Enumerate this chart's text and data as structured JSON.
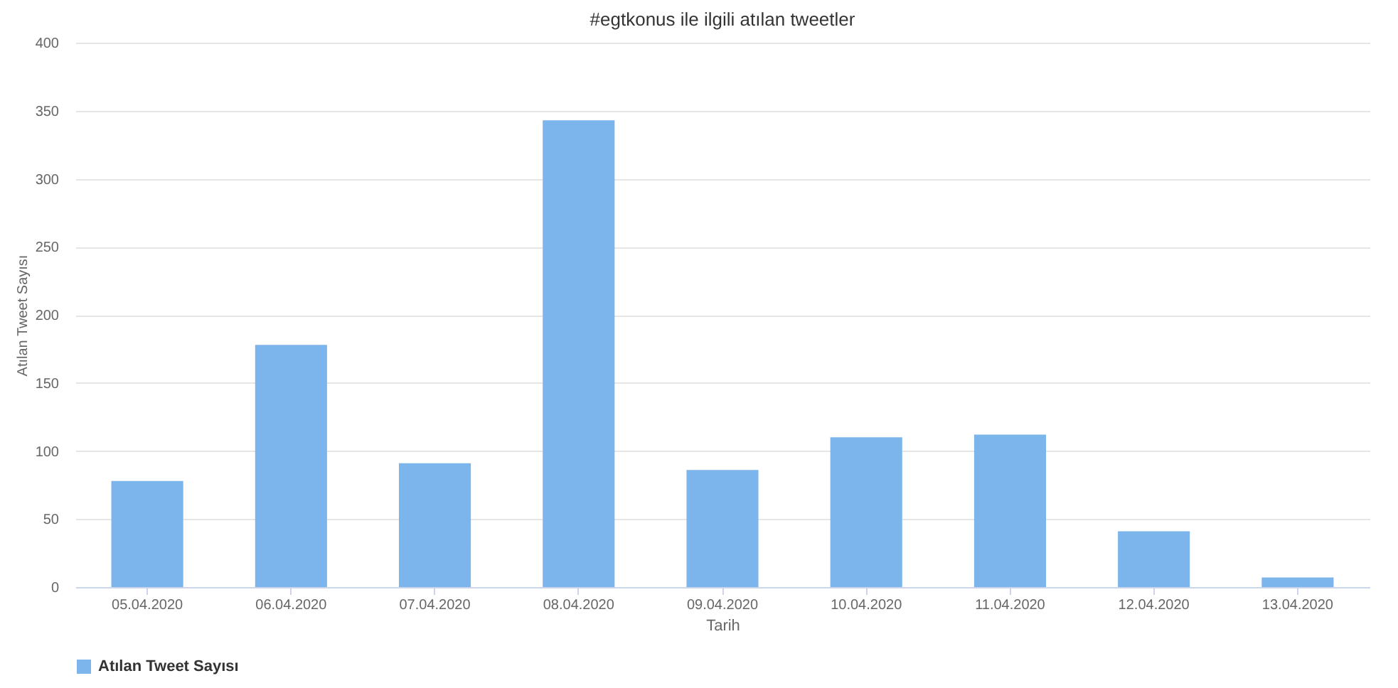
{
  "chart_data": {
    "type": "bar",
    "title": "#egtkonus ile ilgili atılan tweetler",
    "xlabel": "Tarih",
    "ylabel": "Atılan Tweet Sayısı",
    "categories": [
      "05.04.2020",
      "06.04.2020",
      "07.04.2020",
      "08.04.2020",
      "09.04.2020",
      "10.04.2020",
      "11.04.2020",
      "12.04.2020",
      "13.04.2020"
    ],
    "series": [
      {
        "name": "Atılan Tweet Sayısı",
        "color": "#7cb5ec",
        "values": [
          78,
          178,
          91,
          343,
          86,
          110,
          112,
          41,
          7
        ]
      }
    ],
    "ylim": [
      0,
      400
    ],
    "yticks": [
      0,
      50,
      100,
      150,
      200,
      250,
      300,
      350,
      400
    ],
    "grid": "y",
    "legend": "bottom"
  }
}
